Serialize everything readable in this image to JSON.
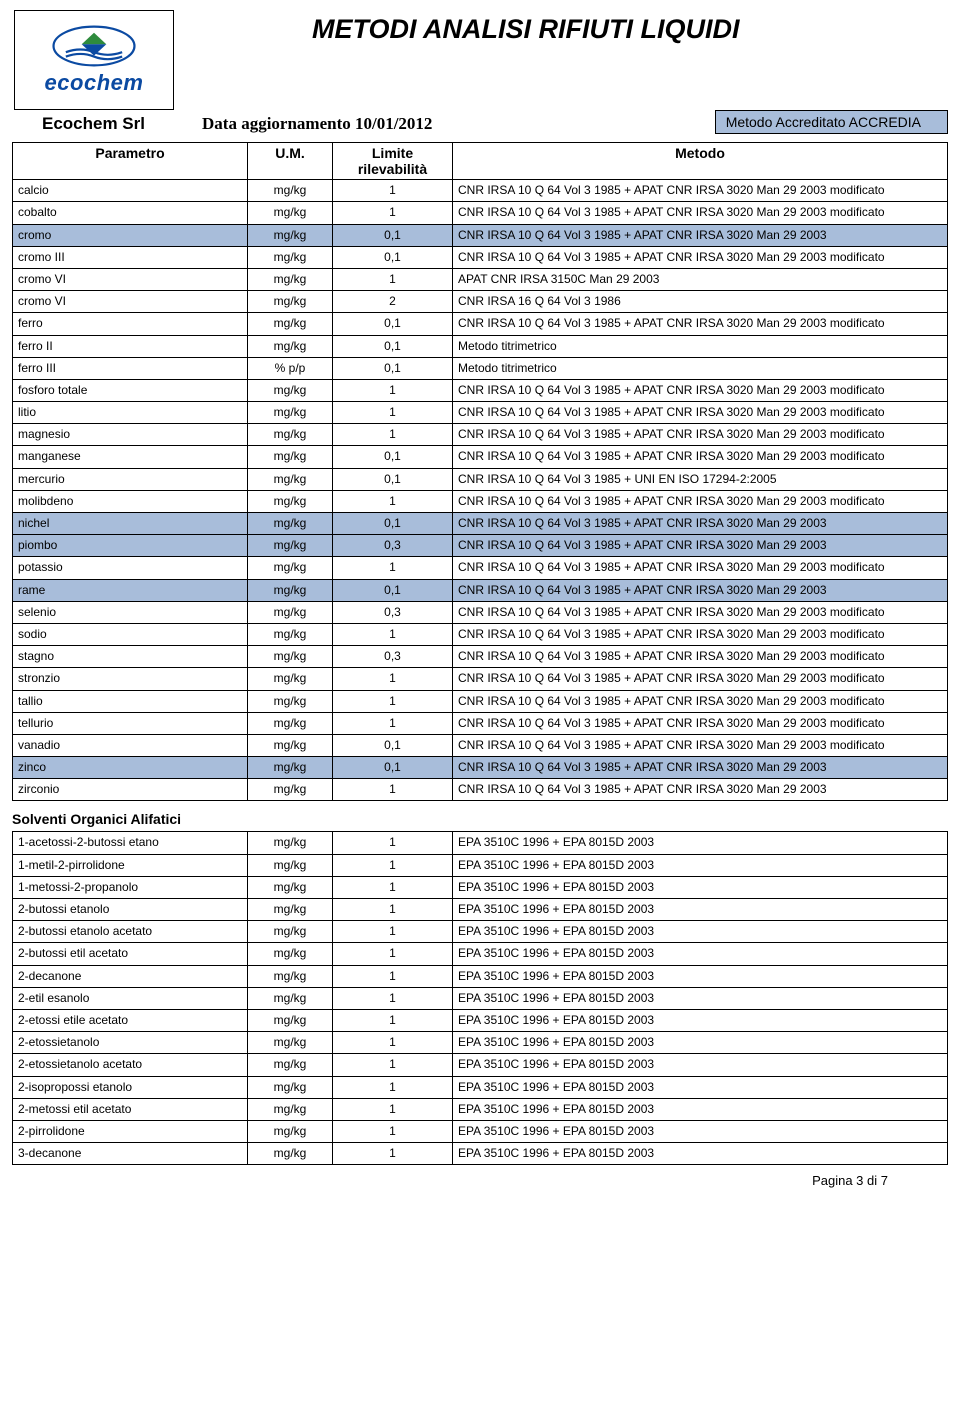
{
  "header": {
    "title": "METODI ANALISI RIFIUTI LIQUIDI",
    "company": "Ecochem Srl",
    "logo_name": "ecochem",
    "update_label": "Data aggiornamento 10/01/2012",
    "accredia": "Metodo Accreditato ACCREDIA"
  },
  "columns": {
    "param": "Parametro",
    "um": "U.M.",
    "lim_line1": "Limite",
    "lim_line2": "rilevabilità",
    "met": "Metodo"
  },
  "rows1": [
    {
      "hl": false,
      "p": "calcio",
      "u": "mg/kg",
      "l": "1",
      "m": "CNR IRSA 10 Q 64 Vol 3 1985 + APAT CNR IRSA 3020 Man 29 2003 modificato"
    },
    {
      "hl": false,
      "p": "cobalto",
      "u": "mg/kg",
      "l": "1",
      "m": "CNR IRSA 10 Q 64 Vol 3 1985 + APAT CNR IRSA 3020 Man 29 2003 modificato"
    },
    {
      "hl": true,
      "p": "cromo",
      "u": "mg/kg",
      "l": "0,1",
      "m": "CNR IRSA 10 Q 64 Vol 3 1985 + APAT CNR IRSA 3020 Man 29 2003"
    },
    {
      "hl": false,
      "p": "cromo III",
      "u": "mg/kg",
      "l": "0,1",
      "m": "CNR IRSA 10 Q 64 Vol 3 1985 + APAT CNR IRSA 3020 Man 29 2003 modificato"
    },
    {
      "hl": false,
      "p": "cromo VI",
      "u": "mg/kg",
      "l": "1",
      "m": "APAT CNR IRSA 3150C Man 29 2003"
    },
    {
      "hl": false,
      "p": "cromo VI",
      "u": "mg/kg",
      "l": "2",
      "m": "CNR IRSA 16 Q 64 Vol 3 1986"
    },
    {
      "hl": false,
      "p": "ferro",
      "u": "mg/kg",
      "l": "0,1",
      "m": "CNR IRSA 10 Q 64 Vol 3 1985 + APAT CNR IRSA 3020 Man 29 2003 modificato"
    },
    {
      "hl": false,
      "p": "ferro II",
      "u": "mg/kg",
      "l": "0,1",
      "m": "Metodo titrimetrico"
    },
    {
      "hl": false,
      "p": "ferro III",
      "u": "% p/p",
      "l": "0,1",
      "m": "Metodo titrimetrico"
    },
    {
      "hl": false,
      "p": "fosforo totale",
      "u": "mg/kg",
      "l": "1",
      "m": "CNR IRSA 10 Q 64 Vol 3 1985 + APAT CNR IRSA 3020 Man 29 2003 modificato"
    },
    {
      "hl": false,
      "p": "litio",
      "u": "mg/kg",
      "l": "1",
      "m": "CNR IRSA 10 Q 64 Vol 3 1985 + APAT CNR IRSA 3020 Man 29 2003 modificato"
    },
    {
      "hl": false,
      "p": "magnesio",
      "u": "mg/kg",
      "l": "1",
      "m": "CNR IRSA 10 Q 64 Vol 3 1985 + APAT CNR IRSA 3020 Man 29 2003 modificato"
    },
    {
      "hl": false,
      "p": "manganese",
      "u": "mg/kg",
      "l": "0,1",
      "m": "CNR IRSA 10 Q 64 Vol 3 1985 + APAT CNR IRSA 3020 Man 29 2003 modificato"
    },
    {
      "hl": false,
      "p": "mercurio",
      "u": "mg/kg",
      "l": "0,1",
      "m": "CNR IRSA 10 Q 64 Vol 3 1985 + UNI EN ISO 17294-2:2005"
    },
    {
      "hl": false,
      "p": "molibdeno",
      "u": "mg/kg",
      "l": "1",
      "m": "CNR IRSA 10 Q 64 Vol 3 1985 + APAT CNR IRSA 3020 Man 29 2003 modificato"
    },
    {
      "hl": true,
      "p": "nichel",
      "u": "mg/kg",
      "l": "0,1",
      "m": "CNR IRSA 10 Q 64 Vol 3 1985 + APAT CNR IRSA 3020 Man 29 2003"
    },
    {
      "hl": true,
      "p": "piombo",
      "u": "mg/kg",
      "l": "0,3",
      "m": "CNR IRSA 10 Q 64 Vol 3 1985 + APAT CNR IRSA 3020 Man 29 2003"
    },
    {
      "hl": false,
      "p": "potassio",
      "u": "mg/kg",
      "l": "1",
      "m": "CNR IRSA 10 Q 64 Vol 3 1985 + APAT CNR IRSA 3020 Man 29 2003 modificato"
    },
    {
      "hl": true,
      "p": "rame",
      "u": "mg/kg",
      "l": "0,1",
      "m": "CNR IRSA 10 Q 64 Vol 3 1985 + APAT CNR IRSA 3020 Man 29 2003"
    },
    {
      "hl": false,
      "p": "selenio",
      "u": "mg/kg",
      "l": "0,3",
      "m": "CNR IRSA 10 Q 64 Vol 3 1985 + APAT CNR IRSA 3020 Man 29 2003 modificato"
    },
    {
      "hl": false,
      "p": "sodio",
      "u": "mg/kg",
      "l": "1",
      "m": "CNR IRSA 10 Q 64 Vol 3 1985 + APAT CNR IRSA 3020 Man 29 2003 modificato"
    },
    {
      "hl": false,
      "p": "stagno",
      "u": "mg/kg",
      "l": "0,3",
      "m": "CNR IRSA 10 Q 64 Vol 3 1985 + APAT CNR IRSA 3020 Man 29 2003 modificato"
    },
    {
      "hl": false,
      "p": "stronzio",
      "u": "mg/kg",
      "l": "1",
      "m": "CNR IRSA 10 Q 64 Vol 3 1985 + APAT CNR IRSA 3020 Man 29 2003 modificato"
    },
    {
      "hl": false,
      "p": "tallio",
      "u": "mg/kg",
      "l": "1",
      "m": "CNR IRSA 10 Q 64 Vol 3 1985 + APAT CNR IRSA 3020 Man 29 2003 modificato"
    },
    {
      "hl": false,
      "p": "tellurio",
      "u": "mg/kg",
      "l": "1",
      "m": "CNR IRSA 10 Q 64 Vol 3 1985 + APAT CNR IRSA 3020 Man 29 2003 modificato"
    },
    {
      "hl": false,
      "p": "vanadio",
      "u": "mg/kg",
      "l": "0,1",
      "m": "CNR IRSA 10 Q 64 Vol 3 1985 + APAT CNR IRSA 3020 Man 29 2003 modificato"
    },
    {
      "hl": true,
      "p": "zinco",
      "u": "mg/kg",
      "l": "0,1",
      "m": "CNR IRSA 10 Q 64 Vol 3 1985 + APAT CNR IRSA 3020 Man 29 2003"
    },
    {
      "hl": false,
      "p": "zirconio",
      "u": "mg/kg",
      "l": "1",
      "m": "CNR IRSA 10 Q 64 Vol 3 1985 + APAT CNR IRSA 3020 Man 29 2003"
    }
  ],
  "section2_title": "Solventi Organici Alifatici",
  "rows2": [
    {
      "hl": false,
      "p": "1-acetossi-2-butossi etano",
      "u": "mg/kg",
      "l": "1",
      "m": "EPA 3510C 1996 + EPA 8015D 2003"
    },
    {
      "hl": false,
      "p": "1-metil-2-pirrolidone",
      "u": "mg/kg",
      "l": "1",
      "m": "EPA 3510C 1996 + EPA 8015D 2003"
    },
    {
      "hl": false,
      "p": "1-metossi-2-propanolo",
      "u": "mg/kg",
      "l": "1",
      "m": "EPA 3510C 1996 + EPA 8015D 2003"
    },
    {
      "hl": false,
      "p": "2-butossi etanolo",
      "u": "mg/kg",
      "l": "1",
      "m": "EPA 3510C 1996 + EPA 8015D 2003"
    },
    {
      "hl": false,
      "p": "2-butossi etanolo acetato",
      "u": "mg/kg",
      "l": "1",
      "m": "EPA 3510C 1996 + EPA 8015D 2003"
    },
    {
      "hl": false,
      "p": "2-butossi etil acetato",
      "u": "mg/kg",
      "l": "1",
      "m": "EPA 3510C 1996 + EPA 8015D 2003"
    },
    {
      "hl": false,
      "p": "2-decanone",
      "u": "mg/kg",
      "l": "1",
      "m": "EPA 3510C 1996 + EPA 8015D 2003"
    },
    {
      "hl": false,
      "p": "2-etil esanolo",
      "u": "mg/kg",
      "l": "1",
      "m": "EPA 3510C 1996 + EPA 8015D 2003"
    },
    {
      "hl": false,
      "p": "2-etossi etile acetato",
      "u": "mg/kg",
      "l": "1",
      "m": "EPA 3510C 1996 + EPA 8015D 2003"
    },
    {
      "hl": false,
      "p": "2-etossietanolo",
      "u": "mg/kg",
      "l": "1",
      "m": "EPA 3510C 1996 + EPA 8015D 2003"
    },
    {
      "hl": false,
      "p": "2-etossietanolo acetato",
      "u": "mg/kg",
      "l": "1",
      "m": "EPA 3510C 1996 + EPA 8015D 2003"
    },
    {
      "hl": false,
      "p": "2-isopropossi etanolo",
      "u": "mg/kg",
      "l": "1",
      "m": "EPA 3510C 1996 + EPA 8015D 2003"
    },
    {
      "hl": false,
      "p": "2-metossi etil acetato",
      "u": "mg/kg",
      "l": "1",
      "m": "EPA 3510C 1996 + EPA 8015D 2003"
    },
    {
      "hl": false,
      "p": "2-pirrolidone",
      "u": "mg/kg",
      "l": "1",
      "m": "EPA 3510C 1996 + EPA 8015D 2003"
    },
    {
      "hl": false,
      "p": "3-decanone",
      "u": "mg/kg",
      "l": "1",
      "m": "EPA 3510C 1996 + EPA 8015D 2003"
    }
  ],
  "footer": {
    "page_label": "Pagina 3 di  7"
  },
  "style": {
    "highlight_color": "#a8bdda",
    "border_color": "#000000",
    "background": "#ffffff",
    "title_fontsize": 27,
    "header_fontsize": 14,
    "body_fontsize": 12,
    "logo_blue": "#0b4aa2",
    "logo_green": "#2e8b3d"
  }
}
